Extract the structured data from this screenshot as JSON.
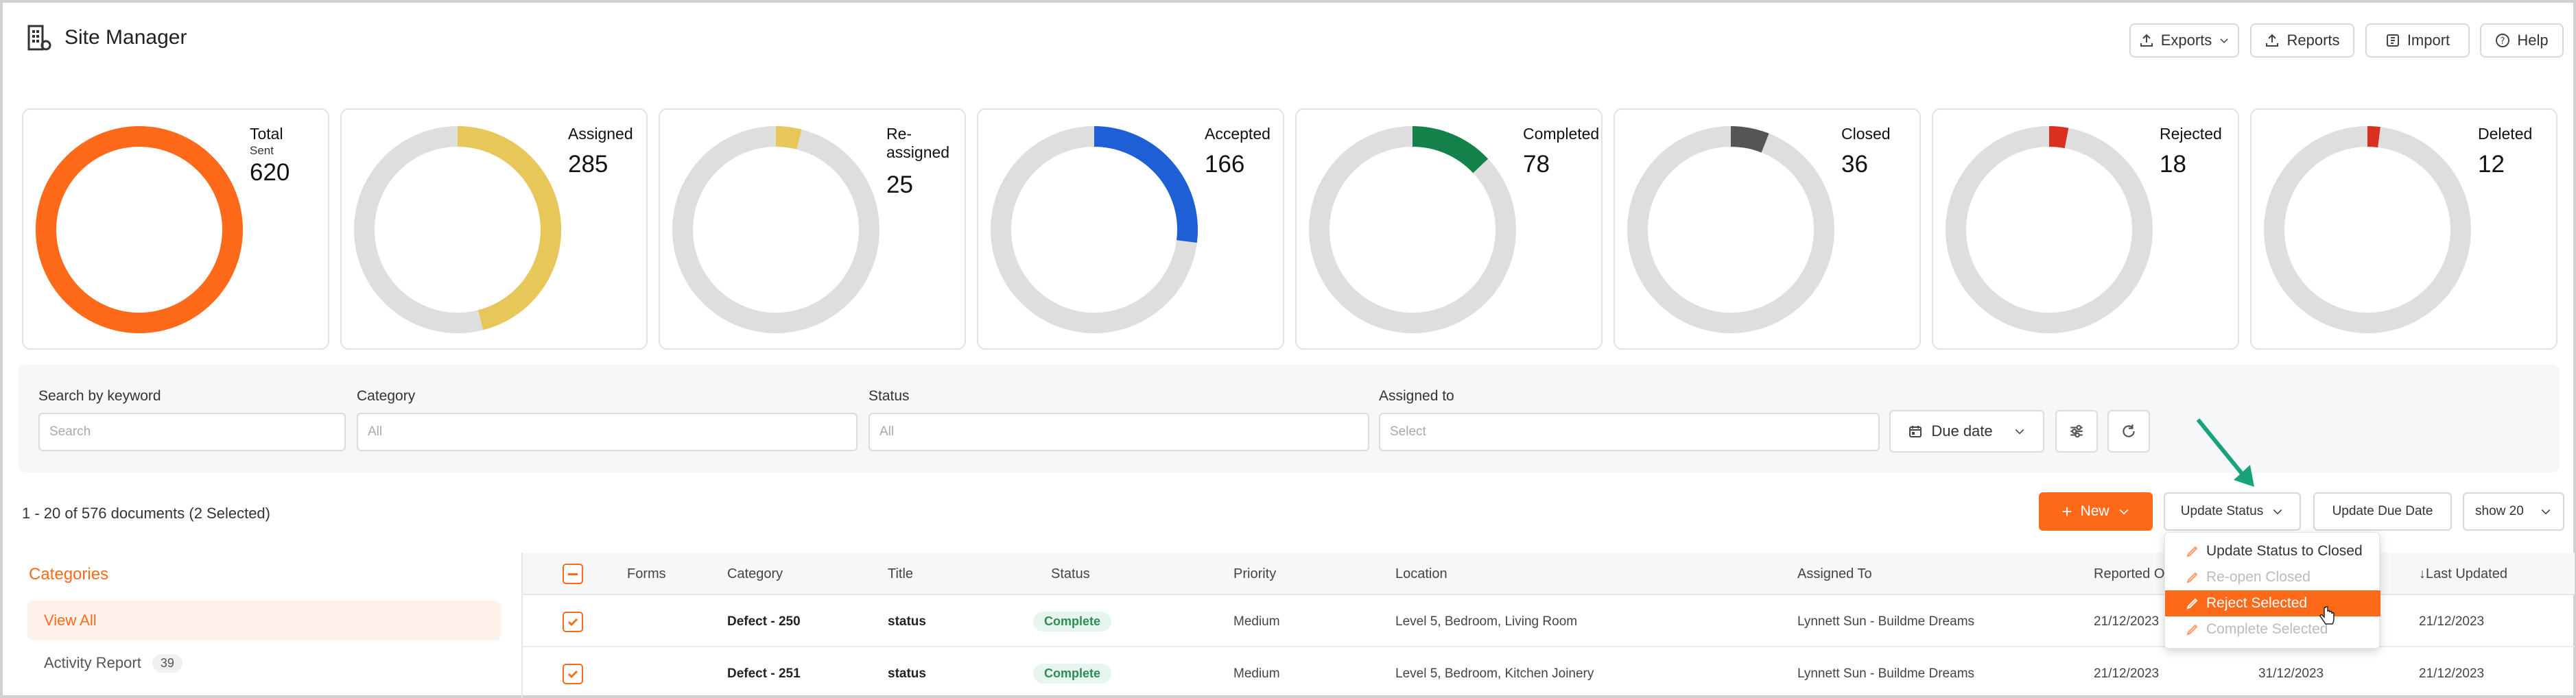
{
  "app": {
    "title": "Site Manager"
  },
  "header_buttons": {
    "exports": "Exports",
    "reports": "Reports",
    "import": "Import",
    "help": "Help"
  },
  "stats": [
    {
      "label": "Total",
      "sub": "Sent",
      "value": "620",
      "fraction": 1.0,
      "color": "#ff6a1a"
    },
    {
      "label": "Assigned",
      "value": "285",
      "fraction": 0.46,
      "color": "#e8c75a"
    },
    {
      "label": "Re-\nassigned",
      "value": "25",
      "fraction": 0.04,
      "color": "#e8c75a"
    },
    {
      "label": "Accepted",
      "value": "166",
      "fraction": 0.27,
      "color": "#1f5fd6"
    },
    {
      "label": "Completed",
      "value": "78",
      "fraction": 0.13,
      "color": "#12814a"
    },
    {
      "label": "Closed",
      "value": "36",
      "fraction": 0.06,
      "color": "#555555"
    },
    {
      "label": "Rejected",
      "value": "18",
      "fraction": 0.03,
      "color": "#d9301f"
    },
    {
      "label": "Deleted",
      "value": "12",
      "fraction": 0.02,
      "color": "#d9301f"
    }
  ],
  "filters": {
    "keyword_label": "Search by keyword",
    "keyword_placeholder": "Search",
    "category_label": "Category",
    "category_value": "All",
    "status_label": "Status",
    "status_value": "All",
    "assigned_label": "Assigned to",
    "assigned_placeholder": "Select",
    "due_date": "Due date"
  },
  "toolbar": {
    "doc_count": "1 - 20 of 576 documents (2 Selected)",
    "new": "New",
    "update_status": "Update Status",
    "update_due_date": "Update Due Date",
    "show": "show 20"
  },
  "dropdown": {
    "items": [
      {
        "label": "Update Status to Closed",
        "state": "normal"
      },
      {
        "label": "Re-open Closed",
        "state": "disabled"
      },
      {
        "label": "Reject Selected",
        "state": "active"
      },
      {
        "label": "Complete Selected",
        "state": "disabled"
      }
    ]
  },
  "sidebar": {
    "title": "Categories",
    "items": [
      {
        "label": "View All",
        "count": ""
      },
      {
        "label": "Activity Report",
        "count": "39"
      }
    ]
  },
  "table": {
    "headers": {
      "forms": "Forms",
      "category": "Category",
      "title": "Title",
      "status": "Status",
      "priority": "Priority",
      "location": "Location",
      "assigned_to": "Assigned To",
      "reported_on": "Reported On",
      "last_updated": "↓Last Updated"
    },
    "rows": [
      {
        "category": "Defect - 250",
        "title": "status",
        "status": "Complete",
        "priority": "Medium",
        "location": "Level 5, Bedroom, Living Room",
        "assigned_to": "Lynnett Sun - Buildme Dreams",
        "reported_on": "21/12/2023",
        "due": "",
        "last_updated": "21/12/2023"
      },
      {
        "category": "Defect - 251",
        "title": "status",
        "status": "Complete",
        "priority": "Medium",
        "location": "Level 5, Bedroom, Kitchen Joinery",
        "assigned_to": "Lynnett Sun - Buildme Dreams",
        "reported_on": "21/12/2023",
        "due": "31/12/2023",
        "last_updated": "21/12/2023"
      }
    ]
  },
  "colors": {
    "accent": "#ff6a1a",
    "annotation": "#1aa37a"
  }
}
